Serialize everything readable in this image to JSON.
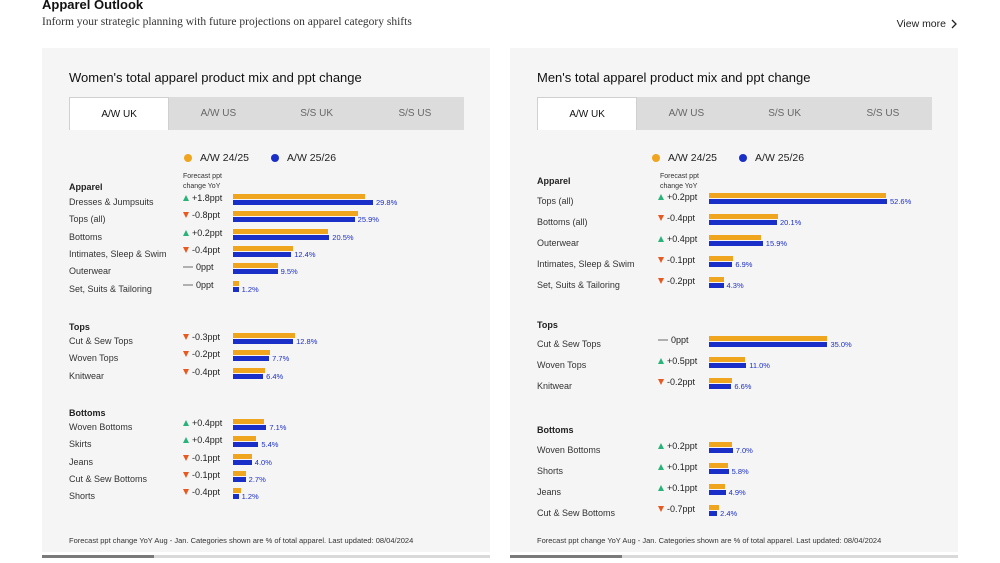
{
  "header": {
    "title": "Apparel Outlook",
    "subtitle": "Inform your strategic planning with future projections on apparel category shifts",
    "view_more": "View more"
  },
  "colors": {
    "prev": "#f0a51e",
    "cur": "#1a2ec8",
    "up": "#28b478",
    "down": "#e8581f",
    "flat": "#b0b0b0"
  },
  "cards": [
    {
      "title": "Women's total apparel product mix and ppt change",
      "tabs": [
        "A/W UK",
        "A/W US",
        "S/S UK",
        "S/S US"
      ],
      "active_tab": 0,
      "legend": [
        "A/W 24/25",
        "A/W 25/26"
      ],
      "forecast_header": "Forecast ppt change YoY",
      "footnote": "Forecast ppt change YoY Aug - Jan. Categories shown are % of total apparel. Last updated: 08/04/2024",
      "sections": [
        {
          "label": "Apparel",
          "rows": [
            {
              "label": "Dresses & Jumpsuits",
              "dir": "up",
              "change": "+1.8ppt",
              "prev": 28.0,
              "cur": 29.8,
              "cur_label": "29.8%"
            },
            {
              "label": "Tops (all)",
              "dir": "down",
              "change": "-0.8ppt",
              "prev": 26.7,
              "cur": 25.9,
              "cur_label": "25.9%"
            },
            {
              "label": "Bottoms",
              "dir": "up",
              "change": "+0.2ppt",
              "prev": 20.3,
              "cur": 20.5,
              "cur_label": "20.5%"
            },
            {
              "label": "Intimates, Sleep & Swim",
              "dir": "down",
              "change": "-0.4ppt",
              "prev": 12.8,
              "cur": 12.4,
              "cur_label": "12.4%"
            },
            {
              "label": "Outerwear",
              "dir": "flat",
              "change": "0ppt",
              "prev": 9.5,
              "cur": 9.5,
              "cur_label": "9.5%"
            },
            {
              "label": "Set, Suits & Tailoring",
              "dir": "flat",
              "change": "0ppt",
              "prev": 1.2,
              "cur": 1.2,
              "cur_label": "1.2%"
            }
          ]
        },
        {
          "label": "Tops",
          "rows": [
            {
              "label": "Cut & Sew Tops",
              "dir": "down",
              "change": "-0.3ppt",
              "prev": 13.1,
              "cur": 12.8,
              "cur_label": "12.8%"
            },
            {
              "label": "Woven Tops",
              "dir": "down",
              "change": "-0.2ppt",
              "prev": 7.9,
              "cur": 7.7,
              "cur_label": "7.7%"
            },
            {
              "label": "Knitwear",
              "dir": "down",
              "change": "-0.4ppt",
              "prev": 6.8,
              "cur": 6.4,
              "cur_label": "6.4%"
            }
          ]
        },
        {
          "label": "Bottoms",
          "rows": [
            {
              "label": "Woven Bottoms",
              "dir": "up",
              "change": "+0.4ppt",
              "prev": 6.7,
              "cur": 7.1,
              "cur_label": "7.1%"
            },
            {
              "label": "Skirts",
              "dir": "up",
              "change": "+0.4ppt",
              "prev": 5.0,
              "cur": 5.4,
              "cur_label": "5.4%"
            },
            {
              "label": "Jeans",
              "dir": "down",
              "change": "-0.1ppt",
              "prev": 4.1,
              "cur": 4.0,
              "cur_label": "4.0%"
            },
            {
              "label": "Cut & Sew Bottoms",
              "dir": "down",
              "change": "-0.1ppt",
              "prev": 2.8,
              "cur": 2.7,
              "cur_label": "2.7%"
            },
            {
              "label": "Shorts",
              "dir": "down",
              "change": "-0.4ppt",
              "prev": 1.6,
              "cur": 1.2,
              "cur_label": "1.2%"
            }
          ]
        }
      ]
    },
    {
      "title": "Men's total apparel product mix and ppt change",
      "tabs": [
        "A/W UK",
        "A/W US",
        "S/S UK",
        "S/S US"
      ],
      "active_tab": 0,
      "legend": [
        "A/W 24/25",
        "A/W 25/26"
      ],
      "forecast_header": "Forecast ppt change YoY",
      "footnote": "Forecast ppt change YoY Aug - Jan. Categories shown are % of total apparel. Last updated: 08/04/2024",
      "sections": [
        {
          "label": "Apparel",
          "rows": [
            {
              "label": "Tops (all)",
              "dir": "up",
              "change": "+0.2ppt",
              "prev": 52.4,
              "cur": 52.6,
              "cur_label": "52.6%"
            },
            {
              "label": "Bottoms (all)",
              "dir": "down",
              "change": "-0.4ppt",
              "prev": 20.5,
              "cur": 20.1,
              "cur_label": "20.1%"
            },
            {
              "label": "Outerwear",
              "dir": "up",
              "change": "+0.4ppt",
              "prev": 15.5,
              "cur": 15.9,
              "cur_label": "15.9%"
            },
            {
              "label": "Intimates, Sleep & Swim",
              "dir": "down",
              "change": "-0.1ppt",
              "prev": 7.0,
              "cur": 6.9,
              "cur_label": "6.9%"
            },
            {
              "label": "Set, Suits & Tailoring",
              "dir": "down",
              "change": "-0.2ppt",
              "prev": 4.5,
              "cur": 4.3,
              "cur_label": "4.3%"
            }
          ]
        },
        {
          "label": "Tops",
          "rows": [
            {
              "label": "Cut & Sew Tops",
              "dir": "flat",
              "change": "0ppt",
              "prev": 35.0,
              "cur": 35.0,
              "cur_label": "35.0%"
            },
            {
              "label": "Woven Tops",
              "dir": "up",
              "change": "+0.5ppt",
              "prev": 10.5,
              "cur": 11.0,
              "cur_label": "11.0%"
            },
            {
              "label": "Knitwear",
              "dir": "down",
              "change": "-0.2ppt",
              "prev": 6.8,
              "cur": 6.6,
              "cur_label": "6.6%"
            }
          ]
        },
        {
          "label": "Bottoms",
          "rows": [
            {
              "label": "Woven Bottoms",
              "dir": "up",
              "change": "+0.2ppt",
              "prev": 6.8,
              "cur": 7.0,
              "cur_label": "7.0%"
            },
            {
              "label": "Shorts",
              "dir": "up",
              "change": "+0.1ppt",
              "prev": 5.7,
              "cur": 5.8,
              "cur_label": "5.8%"
            },
            {
              "label": "Jeans",
              "dir": "up",
              "change": "+0.1ppt",
              "prev": 4.8,
              "cur": 4.9,
              "cur_label": "4.9%"
            },
            {
              "label": "Cut & Sew Bottoms",
              "dir": "down",
              "change": "-0.7ppt",
              "prev": 3.1,
              "cur": 2.4,
              "cur_label": "2.4%"
            }
          ]
        }
      ]
    }
  ]
}
